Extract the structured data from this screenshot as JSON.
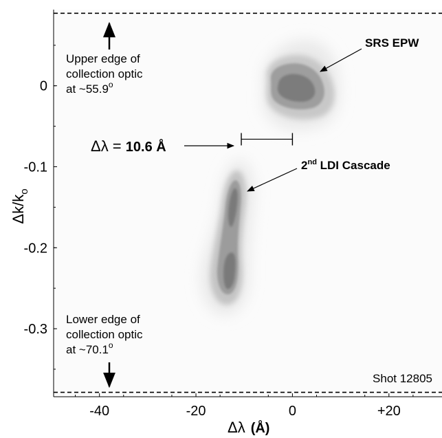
{
  "chart_data": {
    "type": "heatmap",
    "title": "",
    "xlabel": "Δλ (Å)",
    "ylabel": "Δk/kₒ",
    "xlim": [
      -49.5,
      31
    ],
    "ylim": [
      -0.384,
      0.094
    ],
    "x_ticks": [
      {
        "value": -40,
        "label": "-40"
      },
      {
        "value": -20,
        "label": "-20"
      },
      {
        "value": 0,
        "label": "0"
      },
      {
        "value": 20,
        "label": "+20"
      }
    ],
    "y_ticks": [
      {
        "value": 0,
        "label": "0"
      },
      {
        "value": -0.1,
        "label": "-0.1"
      },
      {
        "value": -0.2,
        "label": "-0.2"
      },
      {
        "value": -0.3,
        "label": "-0.3"
      }
    ],
    "grid": false,
    "colormap": "grayscale",
    "features": [
      {
        "name": "SRS EPW",
        "center_x": 0.5,
        "center_y": 0.003,
        "extent_x": [
          -8,
          8
        ],
        "extent_y": [
          -0.05,
          0.07
        ]
      },
      {
        "name": "2nd LDI Cascade",
        "center_x": -13,
        "center_y": -0.185,
        "extent_x": [
          -19,
          -7
        ],
        "extent_y": [
          -0.29,
          -0.09
        ]
      }
    ],
    "boundaries": [
      {
        "y": 0.0895,
        "style": "dashed",
        "label_lines": [
          "Upper edge of",
          "collection optic",
          "at ~55.9°"
        ]
      },
      {
        "y": -0.3785,
        "style": "dashed",
        "label_lines": [
          "Lower edge of",
          "collection optic",
          "at ~70.1°"
        ]
      }
    ],
    "separation": {
      "label_prefix": "Δλ = ",
      "label_value": "10.6 Å",
      "x_from": -10.6,
      "x_to": 0,
      "y": -0.066
    },
    "annotations": [
      {
        "text": "SRS EPW",
        "style": "bold"
      },
      {
        "text": "2nd LDI Cascade",
        "style": "bold"
      },
      {
        "text": "Shot 12805",
        "style": "normal"
      }
    ]
  },
  "text": {
    "srs_label": "SRS EPW",
    "ldi_label_pre": "2",
    "ldi_label_sup": "nd",
    "ldi_label_post": " LDI Cascade",
    "upper_edge": [
      "Upper edge of",
      "collection optic",
      "at ~55.9"
    ],
    "lower_edge": [
      "Lower edge of",
      "collection optic",
      "at ~70.1"
    ],
    "degree_mark": "o",
    "delta_prefix": "Δλ = ",
    "delta_value": "10.6 Å",
    "shot_label": "Shot 12805",
    "xlabel_delta": "Δλ",
    "xlabel_unit": "(Å)",
    "ylabel_main": "Δk/k",
    "ylabel_sub": "o"
  }
}
